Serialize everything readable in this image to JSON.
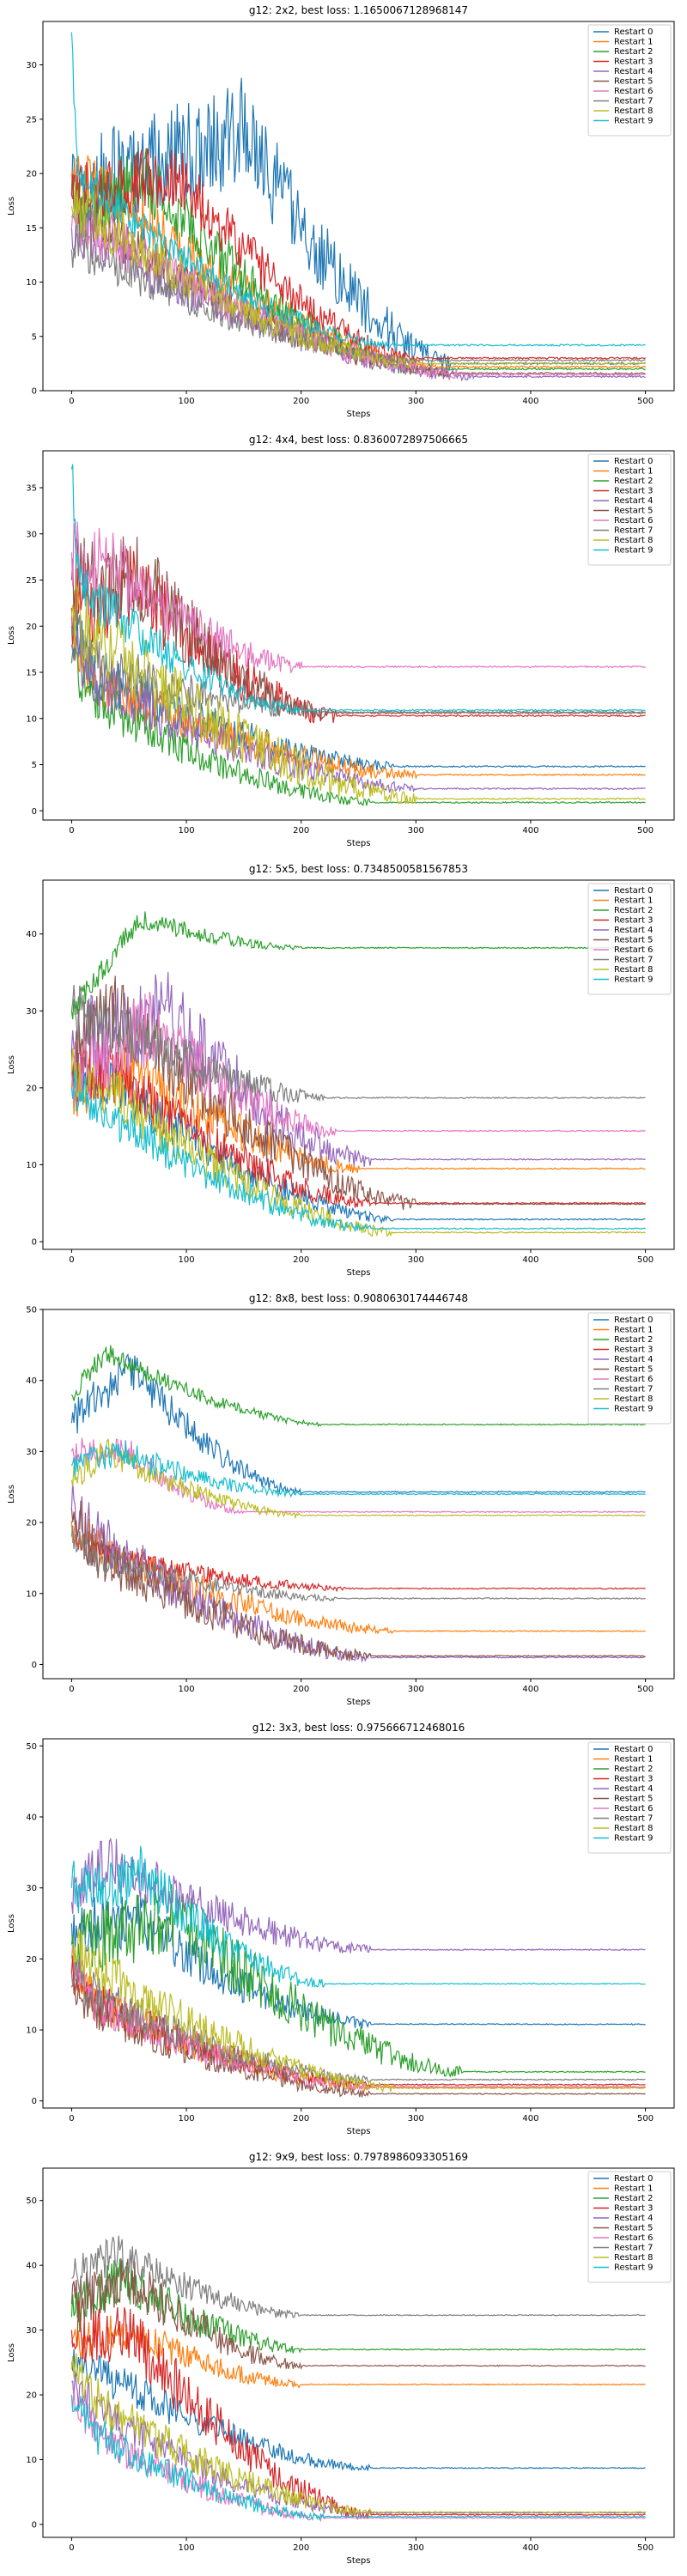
{
  "palette": [
    "#1f77b4",
    "#ff7f0e",
    "#2ca02c",
    "#d62728",
    "#9467bd",
    "#8c564b",
    "#e377c2",
    "#7f7f7f",
    "#bcbd22",
    "#17becf"
  ],
  "series_names": [
    "Restart 0",
    "Restart 1",
    "Restart 2",
    "Restart 3",
    "Restart 4",
    "Restart 5",
    "Restart 6",
    "Restart 7",
    "Restart 8",
    "Restart 9"
  ],
  "chart_data": [
    {
      "type": "line",
      "title": "g12: 2x2, best loss: 1.1650067128968147",
      "xlabel": "Steps",
      "ylabel": "Loss",
      "xlim": [
        -25,
        525
      ],
      "ylim": [
        0,
        34
      ],
      "xticks": [
        0,
        100,
        200,
        300,
        400,
        500
      ],
      "yticks": [
        0,
        5,
        10,
        15,
        20,
        25,
        30
      ],
      "legend": "top-right",
      "series_profiles": [
        {
          "start": 18,
          "peak": 24,
          "peak_at": 150,
          "final": 2.5,
          "decay_end": 330,
          "noise": 5
        },
        {
          "start": 20,
          "peak": 18,
          "peak_at": 40,
          "final": 2.2,
          "decay_end": 320,
          "noise": 2.5
        },
        {
          "start": 16,
          "peak": 20,
          "peak_at": 60,
          "final": 2.0,
          "decay_end": 300,
          "noise": 3
        },
        {
          "start": 18,
          "peak": 20,
          "peak_at": 90,
          "final": 3.0,
          "decay_end": 300,
          "noise": 3
        },
        {
          "start": 15,
          "peak": 14,
          "peak_at": 20,
          "final": 1.3,
          "decay_end": 350,
          "noise": 2.5
        },
        {
          "start": 18,
          "peak": 15,
          "peak_at": 30,
          "final": 1.6,
          "decay_end": 330,
          "noise": 2.5
        },
        {
          "start": 15,
          "peak": 15,
          "peak_at": 20,
          "final": 1.5,
          "decay_end": 340,
          "noise": 2.5
        },
        {
          "start": 13,
          "peak": 13,
          "peak_at": 10,
          "final": 2.8,
          "decay_end": 300,
          "noise": 2
        },
        {
          "start": 17,
          "peak": 16,
          "peak_at": 20,
          "final": 2.5,
          "decay_end": 300,
          "noise": 2.5
        },
        {
          "start": 33,
          "peak": 20,
          "peak_at": 5,
          "final": 4.2,
          "decay_end": 280,
          "noise": 2
        }
      ]
    },
    {
      "type": "line",
      "title": "g12: 4x4, best loss: 0.8360072897506665",
      "xlabel": "Steps",
      "ylabel": "Loss",
      "xlim": [
        -25,
        525
      ],
      "ylim": [
        -1,
        39
      ],
      "xticks": [
        0,
        100,
        200,
        300,
        400,
        500
      ],
      "yticks": [
        0,
        5,
        10,
        15,
        20,
        25,
        30,
        35
      ],
      "legend": "top-right",
      "series_profiles": [
        {
          "start": 20,
          "peak": 15,
          "peak_at": 20,
          "final": 4.8,
          "decay_end": 280,
          "noise": 3
        },
        {
          "start": 18,
          "peak": 14,
          "peak_at": 20,
          "final": 3.9,
          "decay_end": 300,
          "noise": 3
        },
        {
          "start": 16,
          "peak": 12,
          "peak_at": 20,
          "final": 0.9,
          "decay_end": 260,
          "noise": 2.5
        },
        {
          "start": 22,
          "peak": 24,
          "peak_at": 60,
          "final": 10.3,
          "decay_end": 230,
          "noise": 5
        },
        {
          "start": 18,
          "peak": 14,
          "peak_at": 20,
          "final": 2.4,
          "decay_end": 300,
          "noise": 3
        },
        {
          "start": 25,
          "peak": 25,
          "peak_at": 60,
          "final": 10.6,
          "decay_end": 220,
          "noise": 5
        },
        {
          "start": 28,
          "peak": 26,
          "peak_at": 40,
          "final": 15.6,
          "decay_end": 200,
          "noise": 4
        },
        {
          "start": 20,
          "peak": 16,
          "peak_at": 20,
          "final": 10.7,
          "decay_end": 220,
          "noise": 3
        },
        {
          "start": 21,
          "peak": 16,
          "peak_at": 50,
          "final": 1.3,
          "decay_end": 300,
          "noise": 4
        },
        {
          "start": 37,
          "peak": 25,
          "peak_at": 5,
          "final": 10.9,
          "decay_end": 200,
          "noise": 3
        }
      ]
    },
    {
      "type": "line",
      "title": "g12: 5x5, best loss: 0.7348500581567853",
      "xlabel": "Steps",
      "ylabel": "Loss",
      "xlim": [
        -25,
        525
      ],
      "ylim": [
        -1,
        47
      ],
      "xticks": [
        0,
        100,
        200,
        300,
        400,
        500
      ],
      "yticks": [
        0,
        10,
        20,
        30,
        40
      ],
      "legend": "top-right",
      "series_profiles": [
        {
          "start": 22,
          "peak": 20,
          "peak_at": 40,
          "final": 2.9,
          "decay_end": 280,
          "noise": 3
        },
        {
          "start": 20,
          "peak": 22,
          "peak_at": 60,
          "final": 9.5,
          "decay_end": 250,
          "noise": 4
        },
        {
          "start": 30,
          "peak": 42,
          "peak_at": 60,
          "final": 38.2,
          "decay_end": 200,
          "noise": 1.5
        },
        {
          "start": 22,
          "peak": 22,
          "peak_at": 40,
          "final": 5.0,
          "decay_end": 260,
          "noise": 4
        },
        {
          "start": 25,
          "peak": 30,
          "peak_at": 80,
          "final": 10.7,
          "decay_end": 260,
          "noise": 6
        },
        {
          "start": 25,
          "peak": 30,
          "peak_at": 40,
          "final": 4.9,
          "decay_end": 300,
          "noise": 5
        },
        {
          "start": 22,
          "peak": 28,
          "peak_at": 70,
          "final": 14.4,
          "decay_end": 230,
          "noise": 5
        },
        {
          "start": 30,
          "peak": 28,
          "peak_at": 40,
          "final": 18.7,
          "decay_end": 220,
          "noise": 4
        },
        {
          "start": 22,
          "peak": 20,
          "peak_at": 30,
          "final": 1.2,
          "decay_end": 280,
          "noise": 3.5
        },
        {
          "start": 20,
          "peak": 18,
          "peak_at": 20,
          "final": 1.7,
          "decay_end": 260,
          "noise": 3
        }
      ]
    },
    {
      "type": "line",
      "title": "g12: 8x8, best loss: 0.9080630174446748",
      "xlabel": "Steps",
      "ylabel": "Loss",
      "xlim": [
        -25,
        525
      ],
      "ylim": [
        -2,
        50
      ],
      "xticks": [
        0,
        100,
        200,
        300,
        400,
        500
      ],
      "yticks": [
        0,
        10,
        20,
        30,
        40,
        50
      ],
      "legend": "top-right",
      "series_profiles": [
        {
          "start": 34,
          "peak": 42,
          "peak_at": 50,
          "final": 24.3,
          "decay_end": 200,
          "noise": 3
        },
        {
          "start": 20,
          "peak": 16,
          "peak_at": 30,
          "final": 4.7,
          "decay_end": 280,
          "noise": 3
        },
        {
          "start": 38,
          "peak": 44,
          "peak_at": 30,
          "final": 33.8,
          "decay_end": 220,
          "noise": 1.5
        },
        {
          "start": 20,
          "peak": 16,
          "peak_at": 10,
          "final": 10.7,
          "decay_end": 240,
          "noise": 2
        },
        {
          "start": 22,
          "peak": 18,
          "peak_at": 20,
          "final": 1.0,
          "decay_end": 260,
          "noise": 4
        },
        {
          "start": 22,
          "peak": 16,
          "peak_at": 20,
          "final": 1.2,
          "decay_end": 260,
          "noise": 4
        },
        {
          "start": 30,
          "peak": 30,
          "peak_at": 50,
          "final": 21.5,
          "decay_end": 150,
          "noise": 2
        },
        {
          "start": 18,
          "peak": 15,
          "peak_at": 20,
          "final": 9.3,
          "decay_end": 230,
          "noise": 2
        },
        {
          "start": 26,
          "peak": 30,
          "peak_at": 30,
          "final": 21.0,
          "decay_end": 200,
          "noise": 2
        },
        {
          "start": 28,
          "peak": 30,
          "peak_at": 40,
          "final": 24.0,
          "decay_end": 200,
          "noise": 2
        }
      ]
    },
    {
      "type": "line",
      "title": "g12: 3x3, best loss: 0.975666712468016",
      "xlabel": "Steps",
      "ylabel": "Loss",
      "xlim": [
        -25,
        525
      ],
      "ylim": [
        -1,
        51
      ],
      "xticks": [
        0,
        100,
        200,
        300,
        400,
        500
      ],
      "yticks": [
        0,
        10,
        20,
        30,
        40,
        50
      ],
      "legend": "top-right",
      "series_profiles": [
        {
          "start": 25,
          "peak": 25,
          "peak_at": 60,
          "final": 10.8,
          "decay_end": 260,
          "noise": 4
        },
        {
          "start": 18,
          "peak": 14,
          "peak_at": 20,
          "final": 1.9,
          "decay_end": 260,
          "noise": 3
        },
        {
          "start": 22,
          "peak": 26,
          "peak_at": 90,
          "final": 4.1,
          "decay_end": 340,
          "noise": 5
        },
        {
          "start": 18,
          "peak": 14,
          "peak_at": 20,
          "final": 2.3,
          "decay_end": 260,
          "noise": 3
        },
        {
          "start": 28,
          "peak": 34,
          "peak_at": 30,
          "final": 21.3,
          "decay_end": 260,
          "noise": 4
        },
        {
          "start": 16,
          "peak": 13,
          "peak_at": 20,
          "final": 1.0,
          "decay_end": 260,
          "noise": 3
        },
        {
          "start": 20,
          "peak": 14,
          "peak_at": 20,
          "final": 2.0,
          "decay_end": 260,
          "noise": 3
        },
        {
          "start": 18,
          "peak": 15,
          "peak_at": 20,
          "final": 3.0,
          "decay_end": 260,
          "noise": 3
        },
        {
          "start": 22,
          "peak": 18,
          "peak_at": 30,
          "final": 1.8,
          "decay_end": 280,
          "noise": 3.5
        },
        {
          "start": 30,
          "peak": 32,
          "peak_at": 60,
          "final": 16.5,
          "decay_end": 220,
          "noise": 4
        }
      ]
    },
    {
      "type": "line",
      "title": "g12: 9x9, best loss: 0.7978986093305169",
      "xlabel": "Steps",
      "ylabel": "Loss",
      "xlim": [
        -25,
        525
      ],
      "ylim": [
        -2,
        55
      ],
      "xticks": [
        0,
        100,
        200,
        300,
        400,
        500
      ],
      "yticks": [
        0,
        10,
        20,
        30,
        40,
        50
      ],
      "legend": "top-right",
      "series_profiles": [
        {
          "start": 25,
          "peak": 22,
          "peak_at": 40,
          "final": 8.7,
          "decay_end": 260,
          "noise": 3
        },
        {
          "start": 28,
          "peak": 30,
          "peak_at": 50,
          "final": 21.6,
          "decay_end": 200,
          "noise": 3
        },
        {
          "start": 32,
          "peak": 38,
          "peak_at": 40,
          "final": 27.0,
          "decay_end": 200,
          "noise": 4
        },
        {
          "start": 30,
          "peak": 30,
          "peak_at": 50,
          "final": 1.5,
          "decay_end": 260,
          "noise": 5
        },
        {
          "start": 22,
          "peak": 18,
          "peak_at": 20,
          "final": 1.8,
          "decay_end": 250,
          "noise": 3
        },
        {
          "start": 34,
          "peak": 38,
          "peak_at": 50,
          "final": 24.5,
          "decay_end": 200,
          "noise": 4
        },
        {
          "start": 20,
          "peak": 14,
          "peak_at": 20,
          "final": 1.0,
          "decay_end": 220,
          "noise": 3
        },
        {
          "start": 38,
          "peak": 42,
          "peak_at": 40,
          "final": 32.3,
          "decay_end": 200,
          "noise": 3
        },
        {
          "start": 24,
          "peak": 18,
          "peak_at": 30,
          "final": 1.9,
          "decay_end": 260,
          "noise": 3.5
        },
        {
          "start": 20,
          "peak": 14,
          "peak_at": 20,
          "final": 1.2,
          "decay_end": 220,
          "noise": 3
        }
      ]
    }
  ]
}
